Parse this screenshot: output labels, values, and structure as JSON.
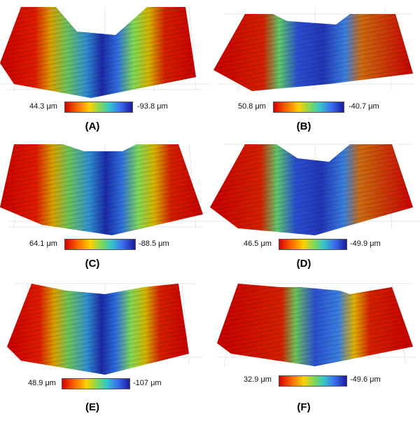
{
  "panels": [
    {
      "caption": "(A)",
      "legend_min": "44.3 μm",
      "legend_max": "-93.8 μm"
    },
    {
      "caption": "(B)",
      "legend_min": "50.8 μm",
      "legend_max": "-40.7 μm"
    },
    {
      "caption": "(C)",
      "legend_min": "64.1 μm",
      "legend_max": "-88.5 μm"
    },
    {
      "caption": "(D)",
      "legend_min": "46.5 μm",
      "legend_max": "-49.9 μm"
    },
    {
      "caption": "(E)",
      "legend_min": "48.9 μm",
      "legend_max": "-107 μm"
    },
    {
      "caption": "(F)",
      "legend_min": "32.9 μm",
      "legend_max": "-49.6 μm"
    }
  ],
  "colors": {
    "high": "#d40000",
    "mid": "#7ed957",
    "low": "#1a1aa0",
    "grid": "#c8c8c8"
  }
}
